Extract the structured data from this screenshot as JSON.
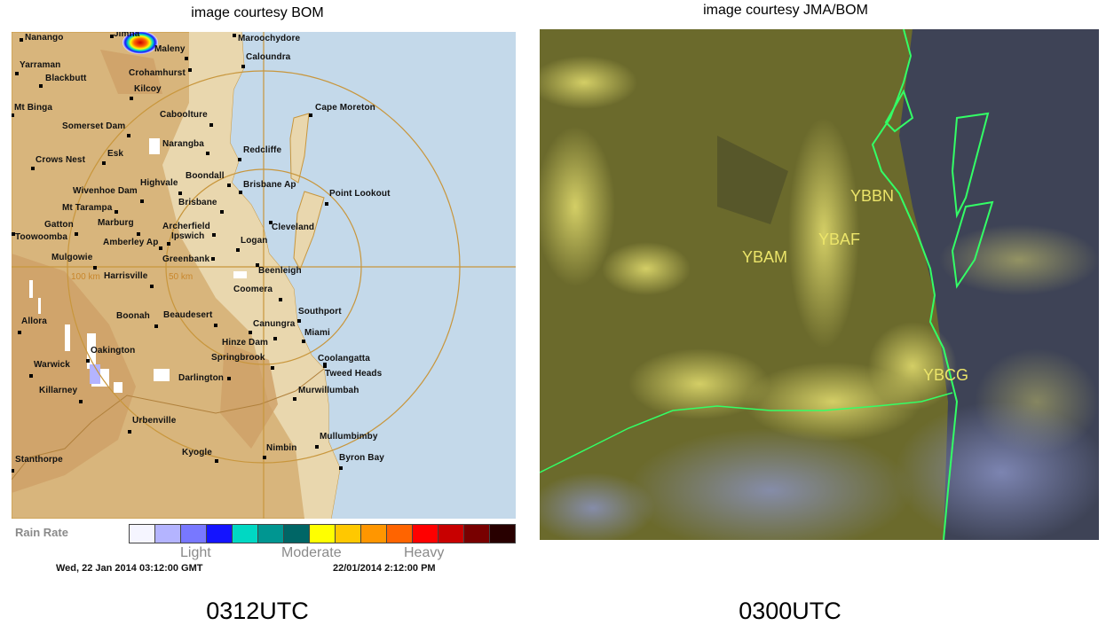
{
  "left_panel": {
    "caption": "image courtesy BOM",
    "bottom_label": "0312UTC",
    "radar": {
      "places": [
        "Nanango",
        "Jimna",
        "Maleny",
        "Maroochydore",
        "Caloundra",
        "Yarraman",
        "Crohamhurst",
        "Blackbutt",
        "Kilcoy",
        "Mt Binga",
        "Cape Moreton",
        "Caboolture",
        "Somerset Dam",
        "Narangba",
        "Redcliffe",
        "Crows Nest",
        "Esk",
        "Boondall",
        "Highvale",
        "Brisbane Ap",
        "Point Lookout",
        "Wivenhoe Dam",
        "Brisbane",
        "Mt Tarampa",
        "Cleveland",
        "Gatton",
        "Marburg",
        "Archerfield",
        "Toowoomba",
        "Logan",
        "Amberley Ap",
        "Ipswich",
        "Mulgowie",
        "Greenbank",
        "Beenleigh",
        "Harrisville",
        "Coomera",
        "Boonah",
        "Beaudesert",
        "Southport",
        "Canungra",
        "Allora",
        "Miami",
        "Hinze Dam",
        "Oakington",
        "Coolangatta",
        "Springbrook",
        "Warwick",
        "Tweed Heads",
        "Darlington",
        "Murwillumbah",
        "Killarney",
        "Urbenville",
        "Mullumbimby",
        "Kyogle",
        "Nimbin",
        "Byron Bay",
        "Stanthorpe"
      ],
      "range_rings": [
        "100 km",
        "50 km"
      ],
      "colors": {
        "land": "#d8b57c",
        "land_light": "#e9d7ae",
        "sea": "#c4d9ea",
        "rings": "#c8963c"
      }
    },
    "legend": {
      "title": "Rain Rate",
      "colors": [
        "#f5f5ff",
        "#b4b4ff",
        "#7878ff",
        "#1414ff",
        "#00d8c3",
        "#009691",
        "#006666",
        "#ffff00",
        "#ffc800",
        "#ff9600",
        "#ff6400",
        "#ff0000",
        "#c80000",
        "#780000",
        "#280000"
      ],
      "light": "Light",
      "moderate": "Moderate",
      "heavy": "Heavy",
      "gmt_time": "Wed, 22 Jan 2014 03:12:00 GMT",
      "local_time": "22/01/2014 2:12:00 PM"
    }
  },
  "right_panel": {
    "caption": "image courtesy JMA/BOM",
    "bottom_label": "0300UTC",
    "satellite": {
      "airports": [
        "YBBN",
        "YBAF",
        "YBAM",
        "YBCG"
      ],
      "colors": {
        "land": "#6b6a2c",
        "sea": "#3e4356",
        "cloud": "#e6e070",
        "coastline": "#33ff66"
      }
    }
  }
}
